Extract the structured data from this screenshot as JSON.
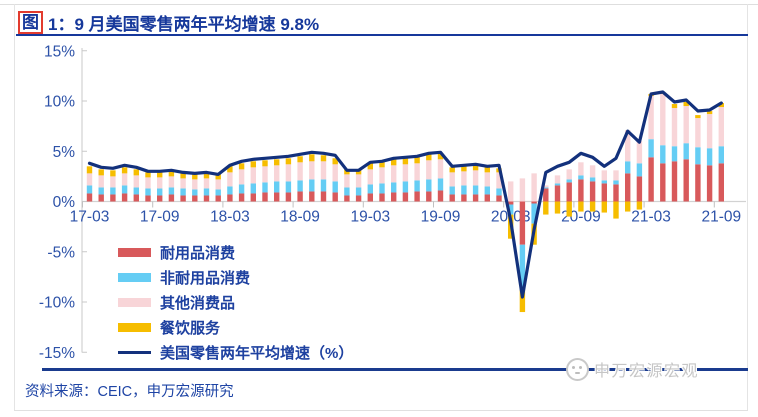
{
  "header": {
    "figure_char": "图",
    "title_text": "1：9 月美国零售两年平均增速 9.8%",
    "title_color": "#16389b",
    "figure_box_color": "#e23b2e"
  },
  "legend": {
    "items": [
      {
        "label": "耐用品消费",
        "color": "#d8595b",
        "type": "bar"
      },
      {
        "label": "非耐用品消费",
        "color": "#65cdf4",
        "type": "bar"
      },
      {
        "label": "其他消费品",
        "color": "#f8d5d8",
        "type": "bar"
      },
      {
        "label": "餐饮服务",
        "color": "#f6bd00",
        "type": "bar"
      },
      {
        "label": "美国零售两年平均增速（%）",
        "color": "#13317c",
        "type": "line"
      }
    ]
  },
  "footer": {
    "source_text": "资料来源：CEIC，申万宏源研究",
    "watermark_text": "申万宏源宏观",
    "rule_color": "#1a3b8e"
  },
  "chart_data": {
    "type": "bar",
    "stacked": true,
    "title": "图 1：9 月美国零售两年平均增速 9.8%",
    "xlabel": "",
    "ylabel": "",
    "ylim": [
      -15,
      15
    ],
    "ytick_step": 5,
    "ytick_suffix": "%",
    "grid": "zero-line-only",
    "legend_position": "inside-lower-left",
    "axis_label_color": "#2d52a8",
    "x": [
      "17-03",
      "17-04",
      "17-05",
      "17-06",
      "17-07",
      "17-08",
      "17-09",
      "17-10",
      "17-11",
      "17-12",
      "18-01",
      "18-02",
      "18-03",
      "18-04",
      "18-05",
      "18-06",
      "18-07",
      "18-08",
      "18-09",
      "18-10",
      "18-11",
      "18-12",
      "19-01",
      "19-02",
      "19-03",
      "19-04",
      "19-05",
      "19-06",
      "19-07",
      "19-08",
      "19-09",
      "19-10",
      "19-11",
      "19-12",
      "20-01",
      "20-02",
      "20-03",
      "20-04",
      "20-05",
      "20-06",
      "20-07",
      "20-08",
      "20-09",
      "20-10",
      "20-11",
      "20-12",
      "21-01",
      "21-02",
      "21-03",
      "21-04",
      "21-05",
      "21-06",
      "21-07",
      "21-08",
      "21-09"
    ],
    "xticks": [
      "17-03",
      "17-09",
      "18-03",
      "18-09",
      "19-03",
      "19-09",
      "20-03",
      "20-09",
      "21-03",
      "21-09"
    ],
    "series": [
      {
        "name": "耐用品消费",
        "type": "bar",
        "color": "#d8595b",
        "values": [
          0.8,
          0.7,
          0.7,
          0.8,
          0.7,
          0.6,
          0.6,
          0.7,
          0.6,
          0.6,
          0.6,
          0.6,
          0.7,
          0.8,
          0.8,
          0.9,
          0.9,
          0.9,
          1.0,
          1.0,
          1.0,
          0.9,
          0.6,
          0.6,
          0.8,
          0.8,
          0.9,
          0.9,
          1.0,
          1.0,
          1.1,
          0.7,
          0.7,
          0.7,
          0.7,
          0.6,
          -0.3,
          -4.3,
          -0.2,
          1.3,
          1.6,
          1.9,
          2.2,
          2.0,
          1.8,
          1.7,
          2.8,
          2.5,
          4.4,
          3.8,
          4.0,
          4.2,
          3.7,
          3.6,
          3.8
        ]
      },
      {
        "name": "非耐用品消费",
        "type": "bar",
        "color": "#65cdf4",
        "values": [
          0.8,
          0.7,
          0.7,
          0.8,
          0.7,
          0.7,
          0.7,
          0.7,
          0.7,
          0.6,
          0.7,
          0.6,
          0.8,
          0.9,
          1.0,
          1.0,
          1.1,
          1.1,
          1.1,
          1.2,
          1.2,
          1.1,
          0.8,
          0.8,
          0.9,
          1.0,
          1.0,
          1.1,
          1.1,
          1.2,
          1.2,
          0.8,
          0.9,
          0.9,
          0.8,
          0.7,
          -1.0,
          -4.5,
          -2.0,
          0.1,
          0.2,
          0.3,
          0.4,
          0.4,
          0.3,
          0.4,
          1.2,
          1.3,
          1.8,
          1.8,
          1.5,
          1.6,
          1.7,
          1.7,
          1.7
        ]
      },
      {
        "name": "其他消费品",
        "type": "bar",
        "color": "#f8d5d8",
        "values": [
          1.2,
          1.2,
          1.1,
          1.2,
          1.2,
          1.1,
          1.1,
          1.1,
          1.0,
          1.0,
          1.0,
          1.0,
          1.4,
          1.5,
          1.6,
          1.6,
          1.6,
          1.7,
          1.8,
          1.8,
          1.8,
          1.7,
          1.3,
          1.3,
          1.5,
          1.6,
          1.7,
          1.7,
          1.7,
          1.9,
          1.9,
          1.4,
          1.4,
          1.5,
          1.4,
          1.6,
          2.0,
          2.3,
          2.8,
          0.2,
          0.8,
          1.0,
          1.3,
          1.2,
          1.0,
          1.0,
          3.1,
          2.2,
          4.3,
          5.1,
          3.8,
          3.7,
          2.9,
          3.4,
          3.9
        ]
      },
      {
        "name": "餐饮服务",
        "type": "bar",
        "color": "#f6bd00",
        "values": [
          0.7,
          0.6,
          0.6,
          0.6,
          0.6,
          0.5,
          0.5,
          0.5,
          0.5,
          0.5,
          0.5,
          0.5,
          0.6,
          0.6,
          0.6,
          0.6,
          0.6,
          0.6,
          0.6,
          0.7,
          0.6,
          0.6,
          0.5,
          0.5,
          0.6,
          0.6,
          0.6,
          0.6,
          0.6,
          0.6,
          0.6,
          0.5,
          0.5,
          0.5,
          0.5,
          0.4,
          -2.4,
          -2.2,
          -2.1,
          -1.3,
          -1.2,
          -1.5,
          -1.0,
          -1.0,
          -1.1,
          -1.7,
          -1.0,
          -0.8,
          0.2,
          0.2,
          0.4,
          0.4,
          0.3,
          0.3,
          0.4
        ]
      },
      {
        "name": "美国零售两年平均增速（%）",
        "type": "line",
        "color": "#13317c",
        "values": [
          3.8,
          3.4,
          3.3,
          3.6,
          3.4,
          3.0,
          3.0,
          3.1,
          2.9,
          2.8,
          2.9,
          2.7,
          3.6,
          4.0,
          4.2,
          4.3,
          4.4,
          4.5,
          4.7,
          4.9,
          4.8,
          4.6,
          3.1,
          3.1,
          3.9,
          4.0,
          4.3,
          4.4,
          4.5,
          4.8,
          4.9,
          3.5,
          3.6,
          3.7,
          3.5,
          3.6,
          -1.9,
          -9.5,
          -2.8,
          2.9,
          3.5,
          3.9,
          4.8,
          4.4,
          3.5,
          4.3,
          7.0,
          5.9,
          10.7,
          10.9,
          9.9,
          10.1,
          9.0,
          9.1,
          9.8
        ]
      }
    ]
  }
}
